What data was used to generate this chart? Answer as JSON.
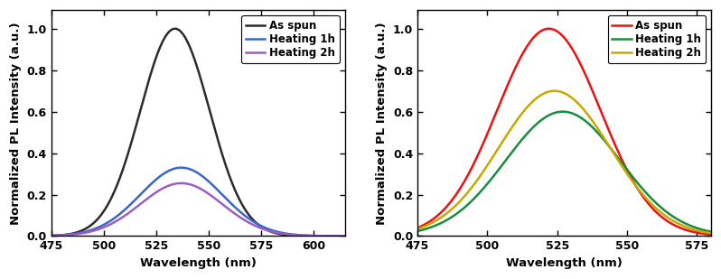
{
  "left": {
    "xlabel": "Wavelength (nm)",
    "ylabel": "Normalized PL Intensity (a.u.)",
    "xlim": [
      475,
      615
    ],
    "ylim": [
      0.0,
      1.09
    ],
    "xticks": [
      475,
      500,
      525,
      550,
      575,
      600
    ],
    "yticks": [
      0.0,
      0.2,
      0.4,
      0.6,
      0.8,
      1.0
    ],
    "series": [
      {
        "label": "As spun",
        "color": "#2B2B2B",
        "peak": 534,
        "sigma": 16.5,
        "amplitude": 1.0,
        "lw": 1.8
      },
      {
        "label": "Heating 1h",
        "color": "#3A66CC",
        "peak": 537,
        "sigma": 19.5,
        "amplitude": 0.33,
        "lw": 1.8
      },
      {
        "label": "Heating 2h",
        "color": "#9B5FC0",
        "peak": 537,
        "sigma": 19.5,
        "amplitude": 0.255,
        "lw": 1.8
      }
    ]
  },
  "right": {
    "xlabel": "Wavelength (nm)",
    "ylabel": "Normalized PL Intensity (a.u.)",
    "xlim": [
      475,
      580
    ],
    "ylim": [
      0.0,
      1.09
    ],
    "xticks": [
      475,
      500,
      525,
      550,
      575
    ],
    "yticks": [
      0.0,
      0.2,
      0.4,
      0.6,
      0.8,
      1.0
    ],
    "series": [
      {
        "label": "As spun",
        "color": "#EE1111",
        "peak": 522,
        "sigma": 18.5,
        "amplitude": 1.0,
        "lw": 1.8
      },
      {
        "label": "Heating 1h",
        "color": "#1A8C3E",
        "peak": 527,
        "sigma": 20.5,
        "amplitude": 0.6,
        "lw": 1.8
      },
      {
        "label": "Heating 2h",
        "color": "#C8A800",
        "peak": 524,
        "sigma": 20.0,
        "amplitude": 0.7,
        "lw": 1.8
      }
    ]
  },
  "legend_fontsize": 8.5,
  "axis_label_fontsize": 9.5,
  "tick_fontsize": 9
}
